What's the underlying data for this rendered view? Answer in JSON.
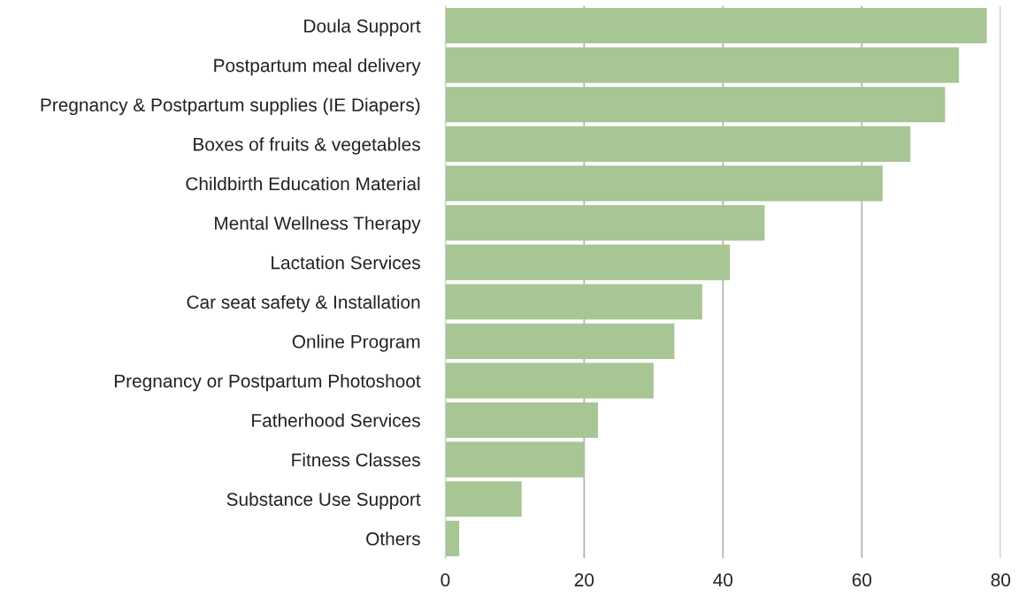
{
  "chart_data": {
    "type": "bar",
    "orientation": "horizontal",
    "categories": [
      "Doula Support",
      "Postpartum meal delivery",
      "Pregnancy & Postpartum supplies (IE Diapers)",
      "Boxes of fruits & vegetables",
      "Childbirth Education Material",
      "Mental Wellness Therapy",
      "Lactation Services",
      "Car seat safety & Installation",
      "Online Program",
      "Pregnancy or Postpartum Photoshoot",
      "Fatherhood Services",
      "Fitness Classes",
      "Substance Use Support",
      "Others"
    ],
    "values": [
      78,
      74,
      72,
      67,
      63,
      46,
      41,
      37,
      33,
      30,
      22,
      20,
      11,
      2
    ],
    "color": "#a8c594",
    "xlim": [
      0,
      80
    ],
    "xticks": [
      0,
      20,
      40,
      60,
      80
    ],
    "grid": "x"
  }
}
